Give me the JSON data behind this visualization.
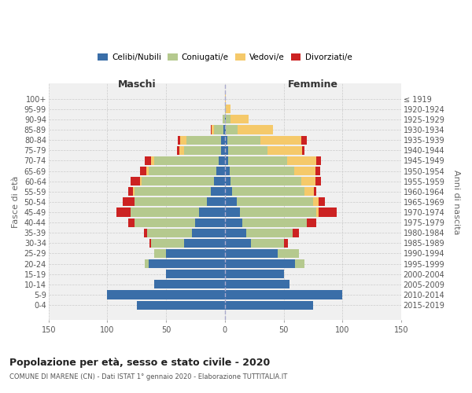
{
  "age_groups": [
    "100+",
    "95-99",
    "90-94",
    "85-89",
    "80-84",
    "75-79",
    "70-74",
    "65-69",
    "60-64",
    "55-59",
    "50-54",
    "45-49",
    "40-44",
    "35-39",
    "30-34",
    "25-29",
    "20-24",
    "15-19",
    "10-14",
    "5-9",
    "0-4"
  ],
  "birth_years": [
    "≤ 1919",
    "1920-1924",
    "1925-1929",
    "1930-1934",
    "1935-1939",
    "1940-1944",
    "1945-1949",
    "1950-1954",
    "1955-1959",
    "1960-1964",
    "1965-1969",
    "1970-1974",
    "1975-1979",
    "1980-1984",
    "1985-1989",
    "1990-1994",
    "1995-1999",
    "2000-2004",
    "2005-2009",
    "2010-2014",
    "2015-2019"
  ],
  "colors": {
    "celibi": "#3a6ea8",
    "coniugati": "#b5c98e",
    "vedovi": "#f5c96a",
    "divorziati": "#cc2222"
  },
  "males": {
    "celibi": [
      0,
      0,
      0,
      1,
      3,
      3,
      5,
      7,
      9,
      12,
      15,
      22,
      25,
      28,
      35,
      50,
      65,
      50,
      60,
      100,
      75
    ],
    "coniugati": [
      0,
      0,
      2,
      8,
      30,
      32,
      55,
      58,
      62,
      65,
      62,
      58,
      52,
      38,
      28,
      10,
      3,
      0,
      0,
      0,
      0
    ],
    "vedovi": [
      0,
      0,
      0,
      2,
      5,
      4,
      3,
      2,
      1,
      1,
      0,
      0,
      0,
      0,
      0,
      0,
      0,
      0,
      0,
      0,
      0
    ],
    "divorziati": [
      0,
      0,
      0,
      1,
      2,
      2,
      5,
      5,
      8,
      4,
      10,
      12,
      5,
      3,
      1,
      0,
      0,
      0,
      0,
      0,
      0
    ]
  },
  "females": {
    "celibi": [
      0,
      0,
      1,
      1,
      2,
      3,
      3,
      4,
      5,
      6,
      10,
      13,
      15,
      18,
      22,
      45,
      60,
      50,
      55,
      100,
      75
    ],
    "coniugati": [
      0,
      1,
      4,
      10,
      28,
      33,
      50,
      55,
      60,
      62,
      65,
      65,
      55,
      40,
      28,
      18,
      8,
      0,
      0,
      0,
      0
    ],
    "vedovi": [
      1,
      4,
      15,
      30,
      35,
      30,
      25,
      18,
      12,
      8,
      5,
      2,
      0,
      0,
      0,
      0,
      0,
      0,
      0,
      0,
      0
    ],
    "divorziati": [
      0,
      0,
      0,
      0,
      5,
      2,
      4,
      4,
      5,
      2,
      5,
      15,
      8,
      5,
      4,
      0,
      0,
      0,
      0,
      0,
      0
    ]
  },
  "title": "Popolazione per età, sesso e stato civile - 2020",
  "subtitle": "COMUNE DI MARENE (CN) - Dati ISTAT 1° gennaio 2020 - Elaborazione TUTTITALIA.IT",
  "xlabel_left": "Maschi",
  "xlabel_right": "Femmine",
  "ylabel_left": "Fasce di età",
  "ylabel_right": "Anni di nascita",
  "xlim": 150,
  "legend_labels": [
    "Celibi/Nubili",
    "Coniugati/e",
    "Vedovi/e",
    "Divorziati/e"
  ],
  "background_color": "#f0f0f0",
  "grid_color": "#cccccc"
}
